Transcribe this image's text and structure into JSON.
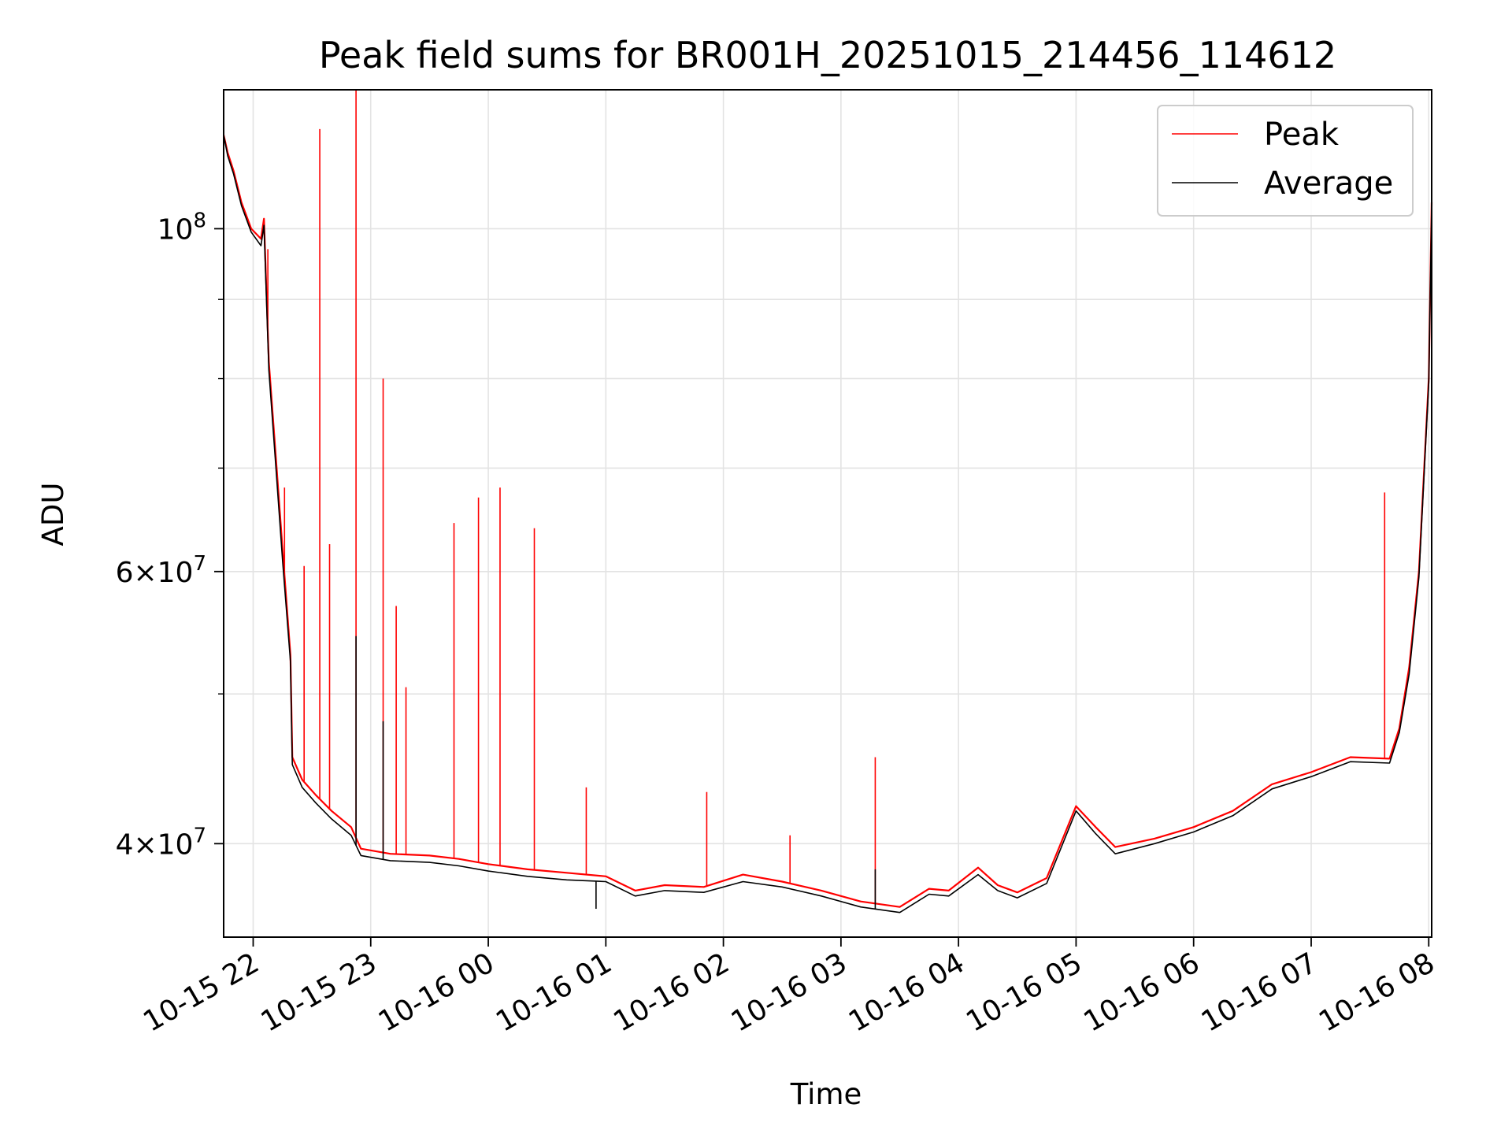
{
  "chart_data": {
    "type": "line",
    "title": "Peak field sums for BR001H_20251015_214456_114612",
    "xlabel": "Time",
    "ylabel": "ADU",
    "yscale": "log",
    "xlim": [
      "2025-10-15 21:44:56",
      "2025-10-16 08:01:30"
    ],
    "ylim": [
      34800000,
      123000000
    ],
    "grid": true,
    "legend_loc": "upper right",
    "x_ticks": [
      "10-15 22",
      "10-15 23",
      "10-16 00",
      "10-16 01",
      "10-16 02",
      "10-16 03",
      "10-16 04",
      "10-16 05",
      "10-16 06",
      "10-16 07",
      "10-16 08"
    ],
    "y_ticks": [
      {
        "value": 40000000,
        "base": "4",
        "exp": "7"
      },
      {
        "value": 60000000,
        "base": "6",
        "exp": "7"
      },
      {
        "value": 100000000,
        "base": "",
        "exp": "8"
      }
    ],
    "series": [
      {
        "name": "Peak",
        "color": "#ff0000",
        "points": [
          [
            "2025-10-15 21:44:56",
            115000000
          ],
          [
            "2025-10-15 21:47:00",
            112000000
          ],
          [
            "2025-10-15 21:50:00",
            109000000
          ],
          [
            "2025-10-15 21:54:00",
            104000000
          ],
          [
            "2025-10-15 21:59:00",
            100000000
          ],
          [
            "2025-10-15 22:04:00",
            98500000
          ],
          [
            "2025-10-15 22:05:30",
            101500000
          ],
          [
            "2025-10-15 22:08:00",
            82000000
          ],
          [
            "2025-10-15 22:12:00",
            70000000
          ],
          [
            "2025-10-15 22:15:00",
            62000000
          ],
          [
            "2025-10-15 22:19:00",
            53000000
          ],
          [
            "2025-10-15 22:20:00",
            45500000
          ],
          [
            "2025-10-15 22:25:00",
            44000000
          ],
          [
            "2025-10-15 22:32:00",
            43000000
          ],
          [
            "2025-10-15 22:40:00",
            42000000
          ],
          [
            "2025-10-15 22:50:00",
            41000000
          ],
          [
            "2025-10-15 22:55:00",
            39700000
          ],
          [
            "2025-10-15 23:10:00",
            39400000
          ],
          [
            "2025-10-15 23:30:00",
            39300000
          ],
          [
            "2025-10-15 23:45:00",
            39100000
          ],
          [
            "2025-10-16 00:00:00",
            38800000
          ],
          [
            "2025-10-16 00:20:00",
            38500000
          ],
          [
            "2025-10-16 00:40:00",
            38300000
          ],
          [
            "2025-10-16 01:00:00",
            38100000
          ],
          [
            "2025-10-16 01:15:00",
            37300000
          ],
          [
            "2025-10-16 01:30:00",
            37600000
          ],
          [
            "2025-10-16 01:50:00",
            37500000
          ],
          [
            "2025-10-16 02:10:00",
            38200000
          ],
          [
            "2025-10-16 02:30:00",
            37800000
          ],
          [
            "2025-10-16 02:50:00",
            37300000
          ],
          [
            "2025-10-16 03:10:00",
            36700000
          ],
          [
            "2025-10-16 03:30:00",
            36400000
          ],
          [
            "2025-10-16 03:45:00",
            37400000
          ],
          [
            "2025-10-16 03:55:00",
            37300000
          ],
          [
            "2025-10-16 04:10:00",
            38600000
          ],
          [
            "2025-10-16 04:20:00",
            37600000
          ],
          [
            "2025-10-16 04:30:00",
            37200000
          ],
          [
            "2025-10-16 04:45:00",
            38000000
          ],
          [
            "2025-10-16 05:00:00",
            42300000
          ],
          [
            "2025-10-16 05:10:00",
            41000000
          ],
          [
            "2025-10-16 05:20:00",
            39800000
          ],
          [
            "2025-10-16 05:40:00",
            40300000
          ],
          [
            "2025-10-16 06:00:00",
            41000000
          ],
          [
            "2025-10-16 06:20:00",
            42000000
          ],
          [
            "2025-10-16 06:40:00",
            43700000
          ],
          [
            "2025-10-16 07:00:00",
            44500000
          ],
          [
            "2025-10-16 07:20:00",
            45500000
          ],
          [
            "2025-10-16 07:40:00",
            45400000
          ],
          [
            "2025-10-16 07:45:00",
            47500000
          ],
          [
            "2025-10-16 07:50:00",
            52000000
          ],
          [
            "2025-10-16 07:55:00",
            60000000
          ],
          [
            "2025-10-16 08:00:00",
            80000000
          ],
          [
            "2025-10-16 08:01:30",
            104000000
          ]
        ],
        "spikes": [
          [
            "2025-10-15 22:07:30",
            97000000
          ],
          [
            "2025-10-15 22:16:00",
            68000000
          ],
          [
            "2025-10-15 22:26:00",
            60500000
          ],
          [
            "2025-10-15 22:34:00",
            116000000
          ],
          [
            "2025-10-15 22:39:00",
            62500000
          ],
          [
            "2025-10-15 22:52:30",
            123000000
          ],
          [
            "2025-10-15 23:06:20",
            80000000
          ],
          [
            "2025-10-15 23:13:00",
            57000000
          ],
          [
            "2025-10-15 23:18:00",
            50500000
          ],
          [
            "2025-10-15 23:42:30",
            64500000
          ],
          [
            "2025-10-15 23:55:00",
            67000000
          ],
          [
            "2025-10-16 00:06:00",
            68000000
          ],
          [
            "2025-10-16 00:23:30",
            64000000
          ],
          [
            "2025-10-16 00:50:00",
            43500000
          ],
          [
            "2025-10-16 01:51:30",
            43200000
          ],
          [
            "2025-10-16 02:34:00",
            40500000
          ],
          [
            "2025-10-16 03:17:30",
            45500000
          ],
          [
            "2025-10-16 07:37:30",
            67500000
          ]
        ]
      },
      {
        "name": "Average",
        "color": "#000000",
        "points": [
          [
            "2025-10-15 21:44:56",
            115000000
          ],
          [
            "2025-10-15 21:47:00",
            111500000
          ],
          [
            "2025-10-15 21:50:00",
            108500000
          ],
          [
            "2025-10-15 21:54:00",
            103500000
          ],
          [
            "2025-10-15 21:59:00",
            99500000
          ],
          [
            "2025-10-15 22:04:00",
            97500000
          ],
          [
            "2025-10-15 22:05:30",
            100500000
          ],
          [
            "2025-10-15 22:08:00",
            81000000
          ],
          [
            "2025-10-15 22:12:00",
            69000000
          ],
          [
            "2025-10-15 22:15:00",
            61000000
          ],
          [
            "2025-10-15 22:19:00",
            52500000
          ],
          [
            "2025-10-15 22:20:00",
            45000000
          ],
          [
            "2025-10-15 22:25:00",
            43500000
          ],
          [
            "2025-10-15 22:32:00",
            42500000
          ],
          [
            "2025-10-15 22:40:00",
            41500000
          ],
          [
            "2025-10-15 22:50:00",
            40500000
          ],
          [
            "2025-10-15 22:55:00",
            39300000
          ],
          [
            "2025-10-15 23:10:00",
            39000000
          ],
          [
            "2025-10-15 23:30:00",
            38900000
          ],
          [
            "2025-10-15 23:45:00",
            38700000
          ],
          [
            "2025-10-16 00:00:00",
            38400000
          ],
          [
            "2025-10-16 00:20:00",
            38100000
          ],
          [
            "2025-10-16 00:40:00",
            37900000
          ],
          [
            "2025-10-16 01:00:00",
            37800000
          ],
          [
            "2025-10-16 01:15:00",
            37000000
          ],
          [
            "2025-10-16 01:30:00",
            37300000
          ],
          [
            "2025-10-16 01:50:00",
            37200000
          ],
          [
            "2025-10-16 02:10:00",
            37800000
          ],
          [
            "2025-10-16 02:30:00",
            37500000
          ],
          [
            "2025-10-16 02:50:00",
            37000000
          ],
          [
            "2025-10-16 03:10:00",
            36400000
          ],
          [
            "2025-10-16 03:30:00",
            36100000
          ],
          [
            "2025-10-16 03:45:00",
            37100000
          ],
          [
            "2025-10-16 03:55:00",
            37000000
          ],
          [
            "2025-10-16 04:10:00",
            38200000
          ],
          [
            "2025-10-16 04:20:00",
            37300000
          ],
          [
            "2025-10-16 04:30:00",
            36900000
          ],
          [
            "2025-10-16 04:45:00",
            37700000
          ],
          [
            "2025-10-16 05:00:00",
            42000000
          ],
          [
            "2025-10-16 05:10:00",
            40600000
          ],
          [
            "2025-10-16 05:20:00",
            39400000
          ],
          [
            "2025-10-16 05:40:00",
            40000000
          ],
          [
            "2025-10-16 06:00:00",
            40700000
          ],
          [
            "2025-10-16 06:20:00",
            41700000
          ],
          [
            "2025-10-16 06:40:00",
            43400000
          ],
          [
            "2025-10-16 07:00:00",
            44200000
          ],
          [
            "2025-10-16 07:20:00",
            45200000
          ],
          [
            "2025-10-16 07:40:00",
            45100000
          ],
          [
            "2025-10-16 07:45:00",
            47200000
          ],
          [
            "2025-10-16 07:50:00",
            51500000
          ],
          [
            "2025-10-16 07:55:00",
            59500000
          ],
          [
            "2025-10-16 08:00:00",
            79500000
          ],
          [
            "2025-10-16 08:01:30",
            103500000
          ]
        ],
        "spikes": [
          [
            "2025-10-15 22:52:30",
            54500000
          ],
          [
            "2025-10-15 23:06:20",
            48000000
          ],
          [
            "2025-10-16 00:55:00",
            36300000
          ],
          [
            "2025-10-16 03:17:30",
            38500000
          ]
        ]
      }
    ]
  }
}
